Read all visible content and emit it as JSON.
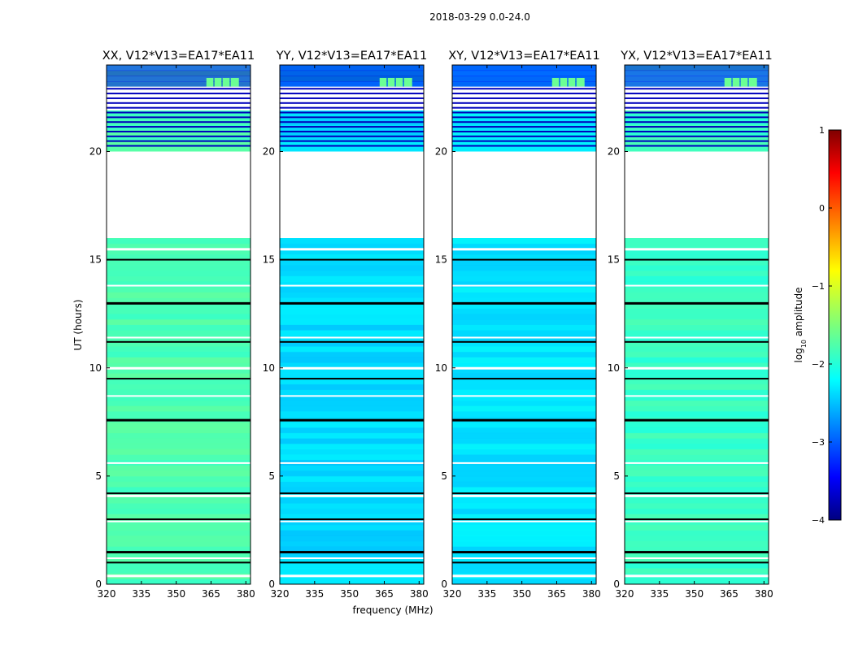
{
  "figure": {
    "suptitle": "2018-03-29 0.0-24.0",
    "xlabel": "frequency (MHz)",
    "ylabel": "UT (hours)"
  },
  "chart_data": {
    "type": "heatmap",
    "title": "2018-03-29 0.0-24.0",
    "xlabel": "frequency (MHz)",
    "ylabel": "UT (hours)",
    "xlim": [
      320,
      382
    ],
    "ylim": [
      0,
      24
    ],
    "xticks": [
      320,
      335,
      350,
      365,
      380
    ],
    "xtick_labels": [
      "320",
      "335",
      "350",
      "365",
      "380"
    ],
    "yticks": [
      0,
      5,
      10,
      15,
      20
    ],
    "ytick_labels": [
      "0",
      "5",
      "10",
      "15",
      "20"
    ],
    "colormap": "jet",
    "colorbar": {
      "label": "log10 amplitude",
      "label_prefix": "log",
      "label_sub": "10",
      "label_suffix": " amplitude",
      "vmin": -4,
      "vmax": 1,
      "ticks": [
        1,
        0,
        -1,
        -2,
        -3,
        -4
      ],
      "tick_labels": [
        "1",
        "0",
        "−1",
        "−2",
        "−3",
        "−4"
      ]
    },
    "panels": [
      {
        "title": "XX, V12*V13=EA17*EA11",
        "pol": "XX",
        "base_level": -1.75
      },
      {
        "title": "YY, V12*V13=EA17*EA11",
        "pol": "YY",
        "base_level": -2.3
      },
      {
        "title": "XY, V12*V13=EA17*EA11",
        "pol": "XY",
        "base_level": -2.25
      },
      {
        "title": "YX, V12*V13=EA17*EA11",
        "pol": "YX",
        "base_level": -1.85
      }
    ],
    "flagged_ut_ranges_hours": [
      [
        16.0,
        20.0
      ],
      [
        21.9,
        23.0
      ]
    ],
    "flagged_ut_lines_hours": [
      0.4,
      1.0,
      1.2,
      1.5,
      2.9,
      3.0,
      4.1,
      4.2,
      5.6,
      7.6,
      8.7,
      9.5,
      10.0,
      11.2,
      11.4,
      13.0,
      13.8,
      15.0,
      15.5
    ]
  }
}
